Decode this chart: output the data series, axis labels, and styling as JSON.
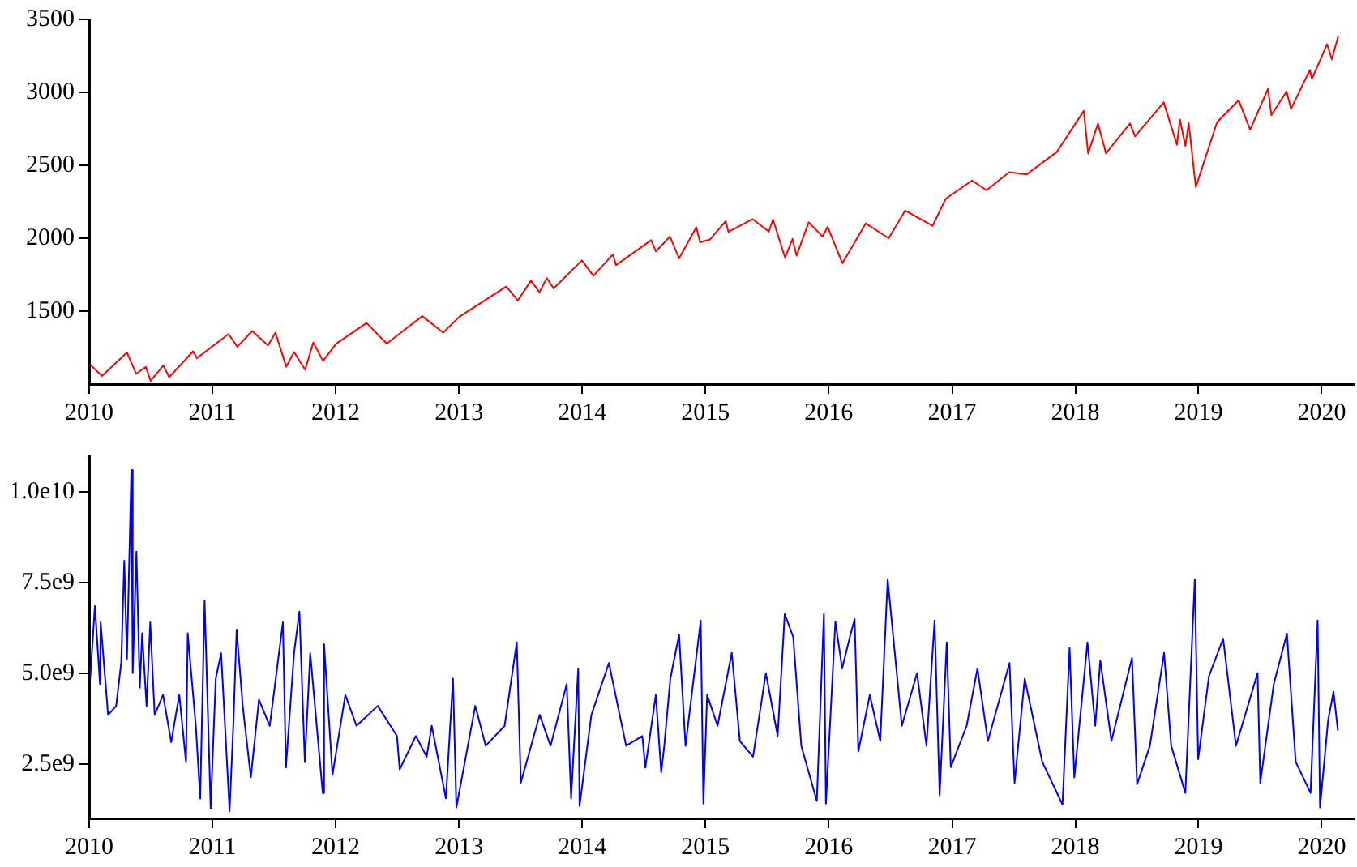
{
  "chart_data": [
    {
      "type": "line",
      "x": [
        "2010-01-04",
        "2010-02-08",
        "2010-04-23",
        "2010-05-20",
        "2010-06-18",
        "2010-07-02",
        "2010-08-09",
        "2010-08-26",
        "2010-11-05",
        "2010-11-16",
        "2011-02-18",
        "2011-03-16",
        "2011-04-29",
        "2011-06-15",
        "2011-07-07",
        "2011-08-08",
        "2011-08-31",
        "2011-10-03",
        "2011-10-27",
        "2011-11-25",
        "2012-01-03",
        "2012-04-02",
        "2012-06-01",
        "2012-09-14",
        "2012-11-15",
        "2013-01-02",
        "2013-05-21",
        "2013-06-24",
        "2013-08-02",
        "2013-08-27",
        "2013-09-18",
        "2013-10-08",
        "2013-12-31",
        "2014-02-03",
        "2014-04-02",
        "2014-04-11",
        "2014-07-24",
        "2014-08-07",
        "2014-09-18",
        "2014-10-15",
        "2014-12-05",
        "2014-12-16",
        "2015-01-15",
        "2015-03-02",
        "2015-03-10",
        "2015-05-21",
        "2015-07-08",
        "2015-07-20",
        "2015-08-25",
        "2015-09-16",
        "2015-09-28",
        "2015-11-03",
        "2015-12-14",
        "2015-12-29",
        "2016-02-11",
        "2016-04-20",
        "2016-06-27",
        "2016-08-15",
        "2016-11-04",
        "2016-12-13",
        "2017-03-01",
        "2017-04-13",
        "2017-06-19",
        "2017-08-10",
        "2017-11-07",
        "2018-01-26",
        "2018-02-08",
        "2018-03-09",
        "2018-04-02",
        "2018-06-12",
        "2018-06-27",
        "2018-09-20",
        "2018-10-29",
        "2018-11-07",
        "2018-11-23",
        "2018-12-03",
        "2018-12-24",
        "2019-02-25",
        "2019-04-30",
        "2019-06-03",
        "2019-07-26",
        "2019-08-05",
        "2019-09-19",
        "2019-10-02",
        "2019-11-27",
        "2019-12-03",
        "2020-01-17",
        "2020-01-31",
        "2020-02-19"
      ],
      "series": [
        {
          "color": "#ff0000",
          "values": [
            1133,
            1056,
            1217,
            1071,
            1117,
            1022,
            1128,
            1047,
            1225,
            1178,
            1343,
            1256,
            1364,
            1265,
            1353,
            1119,
            1219,
            1099,
            1285,
            1159,
            1277,
            1419,
            1278,
            1466,
            1353,
            1462,
            1669,
            1573,
            1709,
            1630,
            1726,
            1656,
            1848,
            1742,
            1890,
            1815,
            1987,
            1910,
            2011,
            1862,
            2075,
            1972,
            1992,
            2117,
            2044,
            2131,
            2046,
            2128,
            1867,
            1995,
            1881,
            2109,
            2012,
            2078,
            1829,
            2102,
            2000,
            2190,
            2085,
            2271,
            2396,
            2329,
            2453,
            2438,
            2591,
            2873,
            2581,
            2786,
            2582,
            2787,
            2699,
            2931,
            2641,
            2814,
            2633,
            2790,
            2351,
            2796,
            2946,
            2744,
            3025,
            2844,
            3006,
            2887,
            3153,
            3093,
            3330,
            3226,
            3386
          ]
        }
      ],
      "xlim": [
        "2010-01-01",
        "2020-04-05"
      ],
      "xticks": [
        "2010",
        "2011",
        "2012",
        "2013",
        "2014",
        "2015",
        "2016",
        "2017",
        "2018",
        "2019",
        "2020"
      ],
      "ylim": [
        1000,
        3500
      ],
      "yticks": [
        1500,
        2000,
        2500,
        3000,
        3500
      ]
    },
    {
      "type": "line",
      "x": [
        "2010-01-04",
        "2010-01-18",
        "2010-02-02",
        "2010-02-04",
        "2010-02-26",
        "2010-03-22",
        "2010-04-06",
        "2010-04-15",
        "2010-04-23",
        "2010-05-06",
        "2010-05-10",
        "2010-05-21",
        "2010-05-31",
        "2010-06-07",
        "2010-06-20",
        "2010-07-01",
        "2010-07-14",
        "2010-08-08",
        "2010-09-01",
        "2010-09-25",
        "2010-10-15",
        "2010-10-20",
        "2010-11-13",
        "2010-11-26",
        "2010-12-09",
        "2010-12-27",
        "2011-01-11",
        "2011-01-27",
        "2011-02-21",
        "2011-03-04",
        "2011-03-14",
        "2011-04-01",
        "2011-04-25",
        "2011-05-19",
        "2011-06-20",
        "2011-07-29",
        "2011-08-07",
        "2011-08-31",
        "2011-09-16",
        "2011-10-02",
        "2011-10-18",
        "2011-11-24",
        "2011-11-28",
        "2011-12-23",
        "2012-01-30",
        "2012-03-03",
        "2012-05-05",
        "2012-07-01",
        "2012-07-09",
        "2012-08-26",
        "2012-09-27",
        "2012-10-12",
        "2012-11-23",
        "2012-12-14",
        "2012-12-24",
        "2013-02-18",
        "2013-03-21",
        "2013-05-16",
        "2013-06-21",
        "2013-07-03",
        "2013-08-28",
        "2013-09-29",
        "2013-11-16",
        "2013-11-29",
        "2013-12-20",
        "2013-12-24",
        "2014-01-28",
        "2014-03-21",
        "2014-05-11",
        "2014-06-28",
        "2014-07-07",
        "2014-08-07",
        "2014-08-23",
        "2014-09-01",
        "2014-09-19",
        "2014-10-15",
        "2014-11-03",
        "2014-12-18",
        "2014-12-26",
        "2015-01-06",
        "2015-02-06",
        "2015-03-20",
        "2015-04-13",
        "2015-05-22",
        "2015-06-29",
        "2015-08-03",
        "2015-08-24",
        "2015-09-18",
        "2015-10-12",
        "2015-11-27",
        "2015-12-18",
        "2015-12-24",
        "2016-01-21",
        "2016-02-10",
        "2016-03-04",
        "2016-03-18",
        "2016-03-29",
        "2016-05-02",
        "2016-06-02",
        "2016-06-24",
        "2016-08-05",
        "2016-09-19",
        "2016-10-17",
        "2016-11-10",
        "2016-11-25",
        "2016-12-16",
        "2016-12-28",
        "2017-02-13",
        "2017-03-17",
        "2017-04-17",
        "2017-06-20",
        "2017-07-05",
        "2017-08-04",
        "2017-09-25",
        "2017-11-24",
        "2017-12-15",
        "2017-12-29",
        "2018-02-06",
        "2018-03-01",
        "2018-03-16",
        "2018-04-18",
        "2018-06-18",
        "2018-07-03",
        "2018-08-10",
        "2018-09-21",
        "2018-10-12",
        "2018-11-23",
        "2018-12-21",
        "2018-12-31",
        "2019-02-01",
        "2019-03-15",
        "2019-04-22",
        "2019-06-25",
        "2019-07-03",
        "2019-08-12",
        "2019-09-20",
        "2019-10-16",
        "2019-11-29",
        "2019-12-20",
        "2019-12-27",
        "2020-01-20",
        "2020-02-05",
        "2020-02-18"
      ],
      "series": [
        {
          "color": "#0000ff",
          "values": [
            4850000000.0,
            6850000000.0,
            4700000000.0,
            6400000000.0,
            3850000000.0,
            4100000000.0,
            5300000000.0,
            8100000000.0,
            5400000000.0,
            10600000000.0,
            5000000000.0,
            8350000000.0,
            4600000000.0,
            6100000000.0,
            4100000000.0,
            6400000000.0,
            3850000000.0,
            4400000000.0,
            3100000000.0,
            4400000000.0,
            2550000000.0,
            6100000000.0,
            3550000000.0,
            1550000000.0,
            7000000000.0,
            1270000000.0,
            4850000000.0,
            5550000000.0,
            1200000000.0,
            3550000000.0,
            6200000000.0,
            4100000000.0,
            2130000000.0,
            4270000000.0,
            3550000000.0,
            6400000000.0,
            2400000000.0,
            5550000000.0,
            6700000000.0,
            2550000000.0,
            5550000000.0,
            1700000000.0,
            5800000000.0,
            2200000000.0,
            4400000000.0,
            3550000000.0,
            4100000000.0,
            3270000000.0,
            2350000000.0,
            3270000000.0,
            2700000000.0,
            3550000000.0,
            1550000000.0,
            4850000000.0,
            1300000000.0,
            4100000000.0,
            3000000000.0,
            3550000000.0,
            5850000000.0,
            1980000000.0,
            3850000000.0,
            3000000000.0,
            4700000000.0,
            1550000000.0,
            5130000000.0,
            1340000000.0,
            3850000000.0,
            5280000000.0,
            3000000000.0,
            3270000000.0,
            2400000000.0,
            4400000000.0,
            2270000000.0,
            3000000000.0,
            4850000000.0,
            6060000000.0,
            3000000000.0,
            6450000000.0,
            1410000000.0,
            4400000000.0,
            3550000000.0,
            5560000000.0,
            3130000000.0,
            2700000000.0,
            5000000000.0,
            3270000000.0,
            6630000000.0,
            6000000000.0,
            3000000000.0,
            1480000000.0,
            6630000000.0,
            1410000000.0,
            6420000000.0,
            5130000000.0,
            6000000000.0,
            6490000000.0,
            2840000000.0,
            4400000000.0,
            3130000000.0,
            7590000000.0,
            3550000000.0,
            5000000000.0,
            3000000000.0,
            6450000000.0,
            1630000000.0,
            5850000000.0,
            2410000000.0,
            3550000000.0,
            5130000000.0,
            3130000000.0,
            5280000000.0,
            1980000000.0,
            4850000000.0,
            2560000000.0,
            1380000000.0,
            5700000000.0,
            2130000000.0,
            5850000000.0,
            3550000000.0,
            5350000000.0,
            3130000000.0,
            5420000000.0,
            1940000000.0,
            3000000000.0,
            5560000000.0,
            3000000000.0,
            1700000000.0,
            7590000000.0,
            2630000000.0,
            4920000000.0,
            5950000000.0,
            3000000000.0,
            5000000000.0,
            1980000000.0,
            4700000000.0,
            6090000000.0,
            2560000000.0,
            1700000000.0,
            6450000000.0,
            1300000000.0,
            3700000000.0,
            4490000000.0,
            3420000000.0
          ]
        }
      ],
      "xlim": [
        "2010-01-01",
        "2020-04-05"
      ],
      "xticks": [
        "2010",
        "2011",
        "2012",
        "2013",
        "2014",
        "2015",
        "2016",
        "2017",
        "2018",
        "2019",
        "2020"
      ],
      "ylim": [
        1000000000.0,
        11000000000.0
      ],
      "yticks": [
        {
          "value": 2500000000.0,
          "label": "2.5e9"
        },
        {
          "value": 5000000000.0,
          "label": "5.0e9"
        },
        {
          "value": 7500000000.0,
          "label": "7.5e9"
        },
        {
          "value": 10000000000.0,
          "label": "1.0e10"
        }
      ]
    }
  ]
}
